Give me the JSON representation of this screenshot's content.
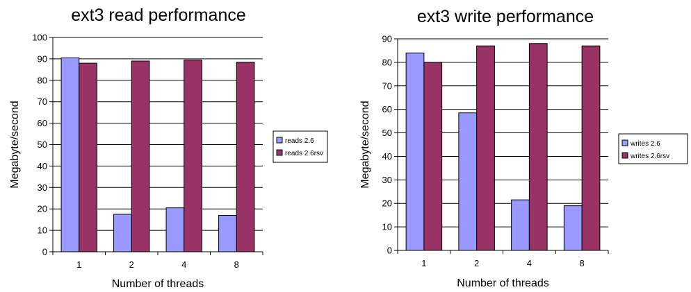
{
  "chart_data": [
    {
      "type": "bar",
      "title": "ext3 read performance",
      "xlabel": "Number of threads",
      "ylabel": "Megabyte/second",
      "categories": [
        "1",
        "2",
        "4",
        "8"
      ],
      "ylim": [
        0,
        100
      ],
      "yticks": [
        "0",
        "10",
        "20",
        "30",
        "40",
        "50",
        "60",
        "70",
        "80",
        "90",
        "100"
      ],
      "grid": true,
      "legend": "right",
      "series": [
        {
          "name": "reads 2.6",
          "values": [
            90.5,
            17.5,
            20.5,
            17
          ],
          "color": "#9999ff"
        },
        {
          "name": "reads 2.6rsv",
          "values": [
            88,
            89,
            89.5,
            88.5
          ],
          "color": "#993366"
        }
      ]
    },
    {
      "type": "bar",
      "title": "ext3 write performance",
      "xlabel": "Number of threads",
      "ylabel": "Megabyte/second",
      "categories": [
        "1",
        "2",
        "4",
        "8"
      ],
      "ylim": [
        0,
        90
      ],
      "yticks": [
        "0",
        "10",
        "20",
        "30",
        "40",
        "50",
        "60",
        "70",
        "80",
        "90"
      ],
      "grid": true,
      "legend": "right",
      "series": [
        {
          "name": "writes 2.6",
          "values": [
            84,
            58.5,
            21.5,
            19
          ],
          "color": "#9999ff"
        },
        {
          "name": "writes 2.6rsv",
          "values": [
            80,
            87,
            88,
            87
          ],
          "color": "#993366"
        }
      ]
    }
  ]
}
